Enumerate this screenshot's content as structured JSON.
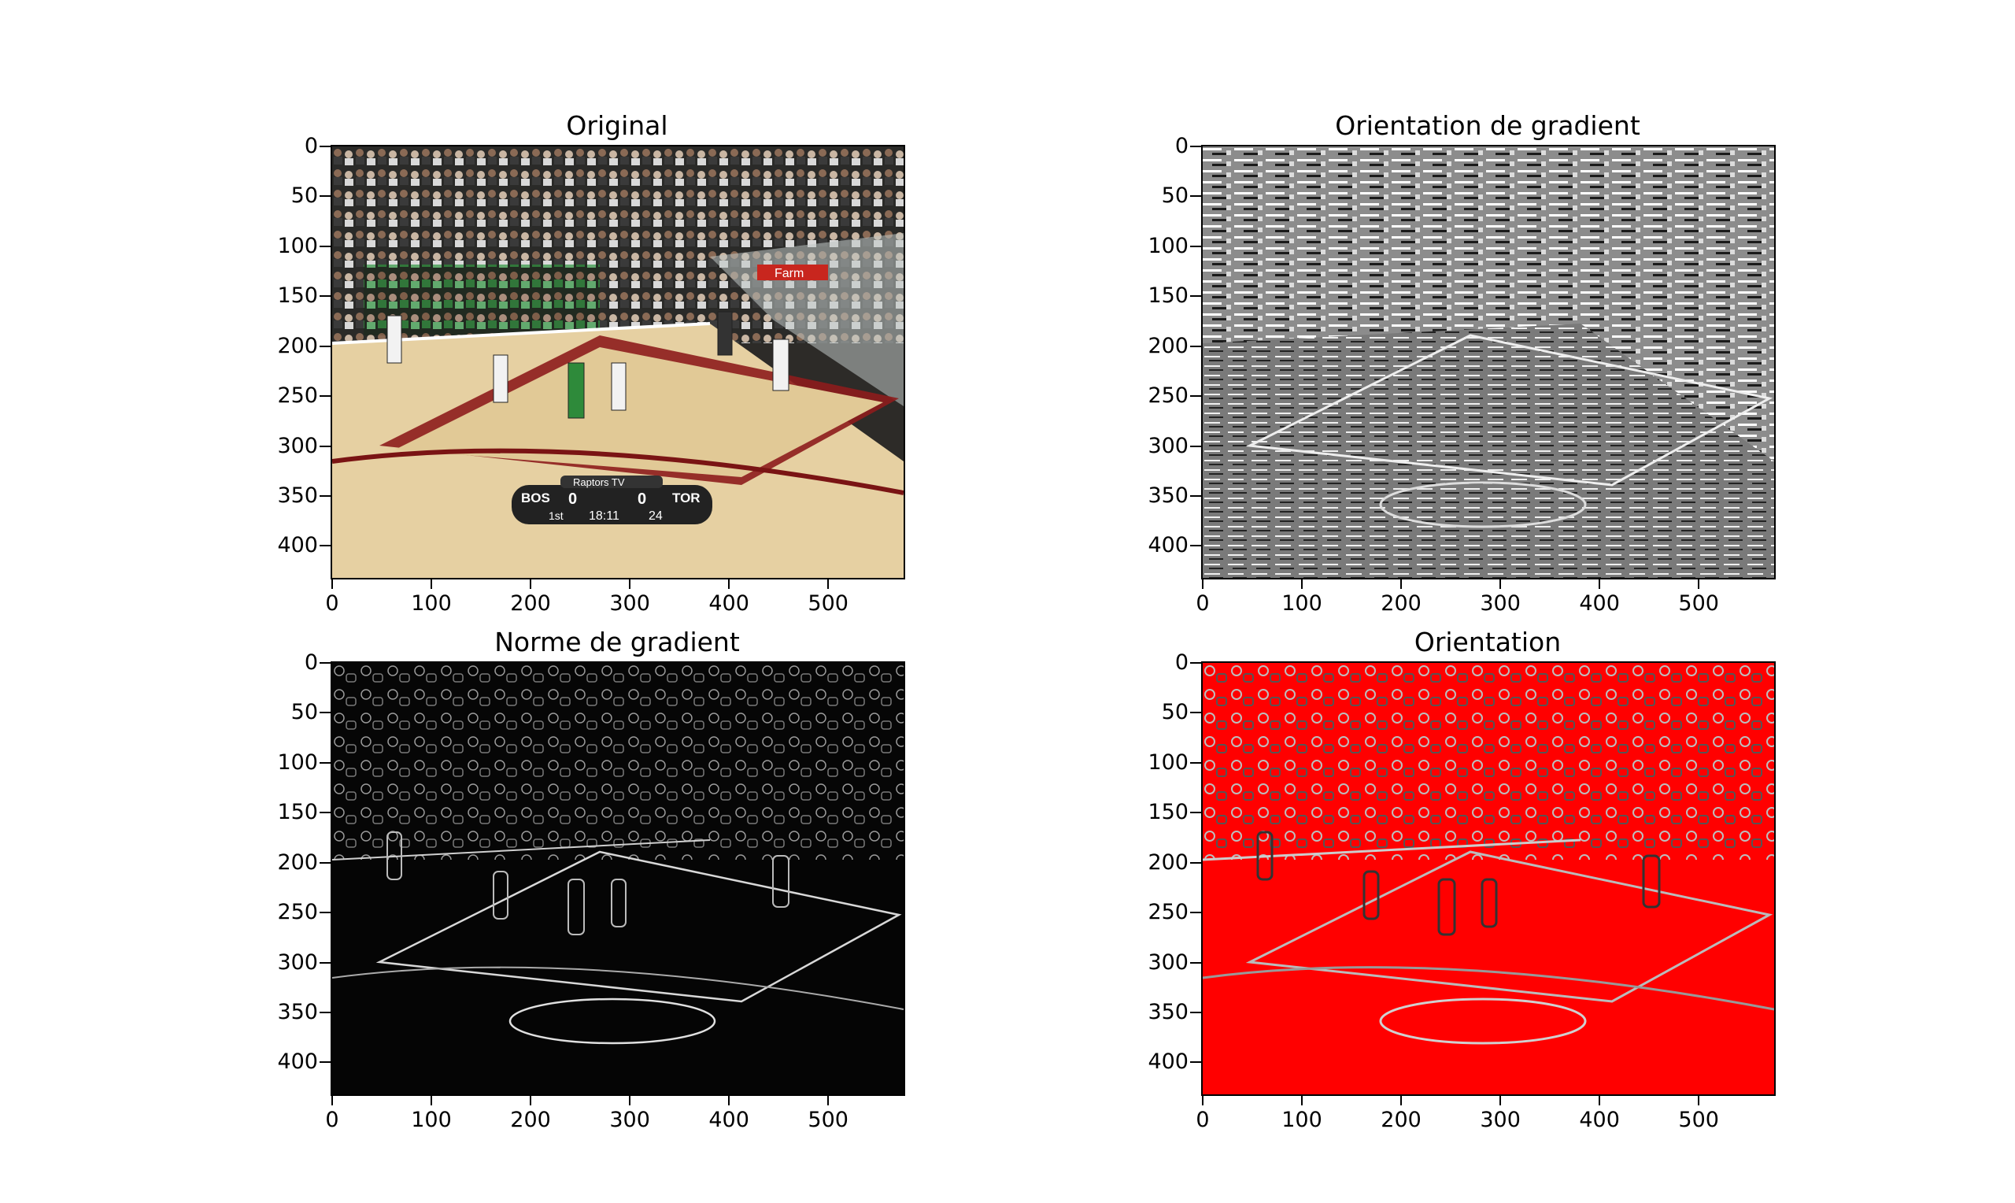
{
  "panels": [
    {
      "title": "Original"
    },
    {
      "title": "Orientation de gradient"
    },
    {
      "title": "Norme de gradient"
    },
    {
      "title": "Orientation"
    }
  ],
  "axes": {
    "x_ticks": [
      "0",
      "100",
      "200",
      "300",
      "400",
      "500"
    ],
    "y_ticks": [
      "0",
      "50",
      "100",
      "150",
      "200",
      "250",
      "300",
      "350",
      "400"
    ],
    "x_range": [
      0,
      576
    ],
    "y_range": [
      0,
      432
    ]
  },
  "scoreboard": {
    "brand": "Raptors TV",
    "home": "BOS",
    "home_score": "0",
    "away_score": "0",
    "away": "TOR",
    "period": "1st",
    "clock": "18:11",
    "shot_clock": "24"
  },
  "banner": "Farm",
  "colors": {
    "court": "#e8d2a4",
    "paint": "#8a1a1a",
    "orientation_red": "#ff0000",
    "magnitude_bg": "#000000"
  }
}
